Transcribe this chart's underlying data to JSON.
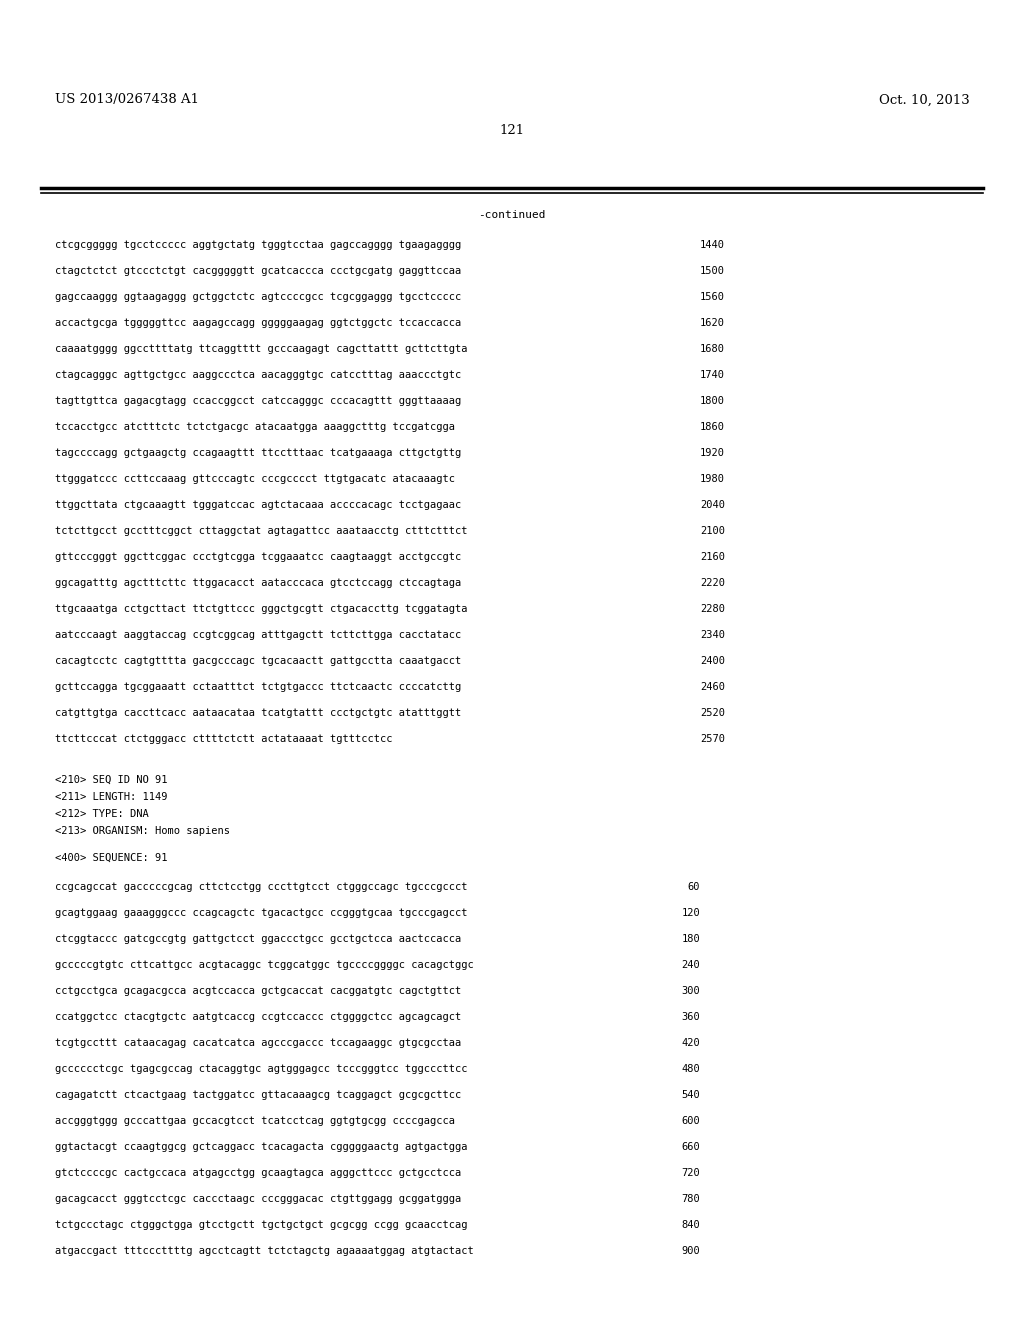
{
  "patent_number": "US 2013/0267438 A1",
  "date": "Oct. 10, 2013",
  "page_number": "121",
  "continued_label": "-continued",
  "background_color": "#ffffff",
  "text_color": "#000000",
  "header_fontsize": 9.5,
  "mono_fontsize": 7.5,
  "sequence_lines_top": [
    [
      "ctcgcggggg tgcctccccc aggtgctatg tgggtcctaa gagccagggg tgaagagggg",
      "1440"
    ],
    [
      "ctagctctct gtccctctgt cacgggggtt gcatcaccca ccctgcgatg gaggttccaa",
      "1500"
    ],
    [
      "gagccaaggg ggtaagaggg gctggctctc agtccccgcc tcgcggaggg tgcctccccc",
      "1560"
    ],
    [
      "accactgcga tgggggttcc aagagccagg gggggaagag ggtctggctc tccaccacca",
      "1620"
    ],
    [
      "caaaatgggg ggccttttatg ttcaggtttt gcccaagagt cagcttattt gcttcttgta",
      "1680"
    ],
    [
      "ctagcagggc agttgctgcc aaggccctca aacagggtgc catcctttag aaaccctgtc",
      "1740"
    ],
    [
      "tagttgttca gagacgtagg ccaccggcct catccagggc cccacagttt gggttaaaag",
      "1800"
    ],
    [
      "tccacctgcc atctttctc tctctgacgc atacaatgga aaaggctttg tccgatcgga",
      "1860"
    ],
    [
      "tagccccagg gctgaagctg ccagaagttt ttcctttaac tcatgaaaga cttgctgttg",
      "1920"
    ],
    [
      "ttgggatccc ccttccaaag gttcccagtc cccgcccct ttgtgacatc atacaaagtc",
      "1980"
    ],
    [
      "ttggcttata ctgcaaagtt tgggatccac agtctacaaa accccacagc tcctgagaac",
      "2040"
    ],
    [
      "tctcttgcct gcctttcggct cttaggctat agtagattcc aaataacctg ctttctttct",
      "2100"
    ],
    [
      "gttcccgggt ggcttcggac ccctgtcgga tcggaaatcc caagtaaggt acctgccgtc",
      "2160"
    ],
    [
      "ggcagatttg agctttcttc ttggacacct aatacccaca gtcctccagg ctccagtaga",
      "2220"
    ],
    [
      "ttgcaaatga cctgcttact ttctgttccc gggctgcgtt ctgacaccttg tcggatagta",
      "2280"
    ],
    [
      "aatcccaagt aaggtaccag ccgtcggcag atttgagctt tcttcttgga cacctatacc",
      "2340"
    ],
    [
      "cacagtcctc cagtgtttta gacgcccagc tgcacaactt gattgcctta caaatgacct",
      "2400"
    ],
    [
      "gcttccagga tgcggaaatt cctaatttct tctgtgaccc ttctcaactc ccccatcttg",
      "2460"
    ],
    [
      "catgttgtga caccttcacc aataacataa tcatgtattt ccctgctgtc atatttggtt",
      "2520"
    ],
    [
      "ttcttcccat ctctgggacc cttttctctt actataaaat tgtttcctcc",
      "2570"
    ]
  ],
  "metadata_lines": [
    "<210> SEQ ID NO 91",
    "<211> LENGTH: 1149",
    "<212> TYPE: DNA",
    "<213> ORGANISM: Homo sapiens",
    "",
    "<400> SEQUENCE: 91"
  ],
  "sequence_lines_bottom": [
    [
      "ccgcagccat gacccccgcag cttctcctgg cccttgtcct ctgggccagc tgcccgccct",
      "60"
    ],
    [
      "gcagtggaag gaaagggccc ccagcagctc tgacactgcc ccgggtgcaa tgcccgagcct",
      "120"
    ],
    [
      "ctcggtaccc gatcgccgtg gattgctcct ggaccctgcc gcctgctcca aactccacca",
      "180"
    ],
    [
      "gcccccgtgtc cttcattgcc acgtacaggc tcggcatggc tgccccggggc cacagctggc",
      "240"
    ],
    [
      "cctgcctgca gcagacgcca acgtccacca gctgcaccat cacggatgtc cagctgttct",
      "300"
    ],
    [
      "ccatggctcc ctacgtgctc aatgtcaccg ccgtccaccc ctggggctcc agcagcagct",
      "360"
    ],
    [
      "tcgtgccttt cataacagag cacatcatca agcccgaccc tccagaaggc gtgcgcctaa",
      "420"
    ],
    [
      "gcccccctcgc tgagcgccag ctacaggtgc agtgggagcc tcccgggtcc tggcccttcc",
      "480"
    ],
    [
      "cagagatctt ctcactgaag tactggatcc gttacaaagcg tcaggagct gcgcgcttcc",
      "540"
    ],
    [
      "accgggtggg gcccattgaa gccacgtcct tcatcctcag ggtgtgcgg ccccgagcca",
      "600"
    ],
    [
      "ggtactacgt ccaagtggcg gctcaggacc tcacagacta cgggggaactg agtgactgga",
      "660"
    ],
    [
      "gtctccccgc cactgccaca atgagcctgg gcaagtagca agggcttccc gctgcctcca",
      "720"
    ],
    [
      "gacagcacct gggtcctcgc caccctaagc cccgggacac ctgttggagg gcggatggga",
      "780"
    ],
    [
      "tctgccctagc ctgggctgga gtcctgctt tgctgctgct gcgcgg ccgg gcaacctcag",
      "840"
    ],
    [
      "atgaccgact tttcccttttg agcctcagtt tctctagctg agaaaatggag atgtactact",
      "900"
    ]
  ]
}
